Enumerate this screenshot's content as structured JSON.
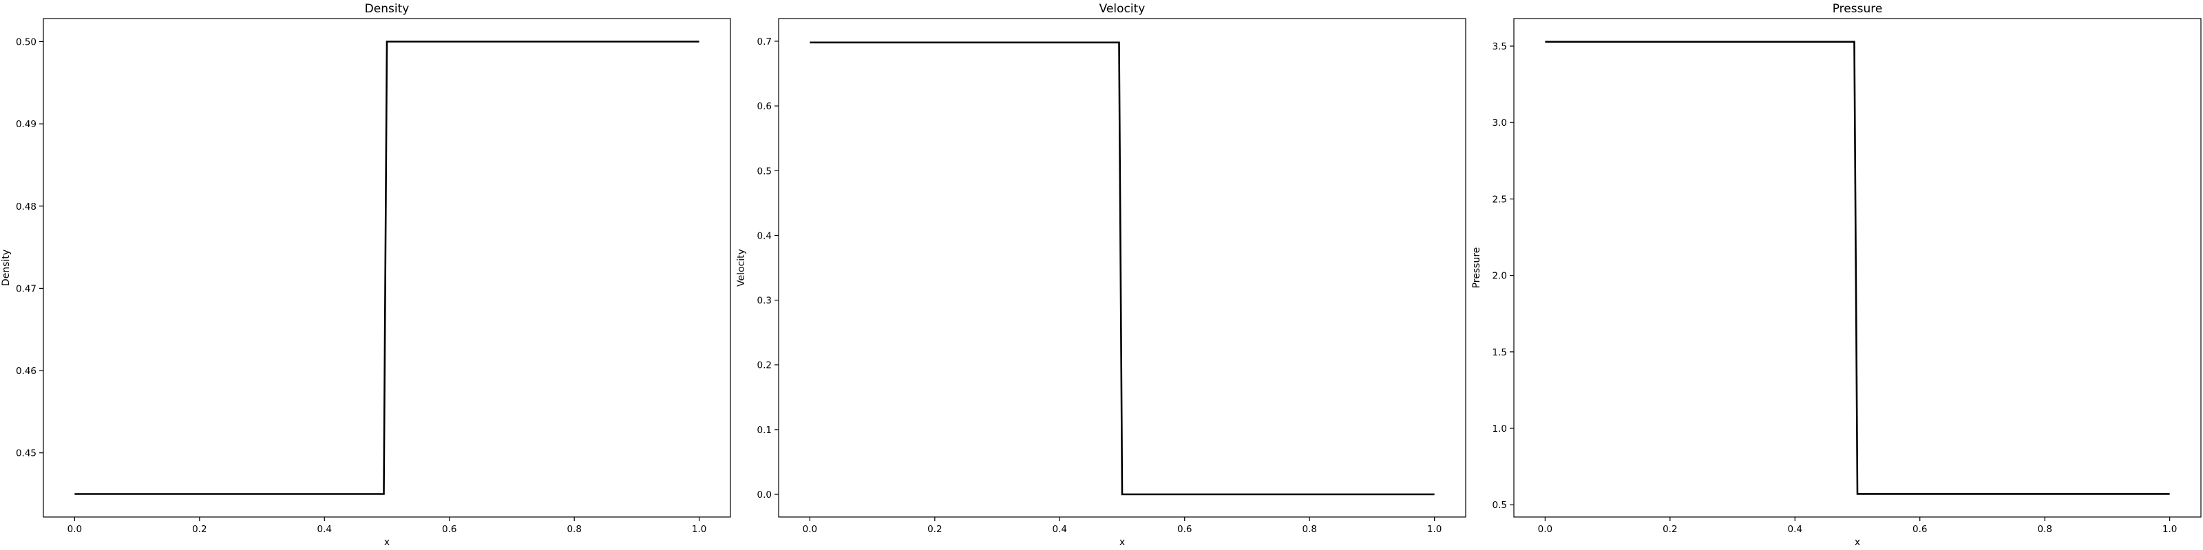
{
  "chart_data": [
    {
      "type": "line",
      "title": "Density",
      "xlabel": "x",
      "ylabel": "Density",
      "xlim": [
        -0.05,
        1.05
      ],
      "ylim": [
        0.4422,
        0.5028
      ],
      "xticks": [
        "0.0",
        "0.2",
        "0.4",
        "0.6",
        "0.8",
        "1.0"
      ],
      "yticks": [
        "0.45",
        "0.46",
        "0.47",
        "0.48",
        "0.49",
        "0.50"
      ],
      "grid": false,
      "series": [
        {
          "x": [
            0.0,
            0.495,
            0.5,
            1.0
          ],
          "y": [
            0.445,
            0.445,
            0.5,
            0.5
          ]
        }
      ]
    },
    {
      "type": "line",
      "title": "Velocity",
      "xlabel": "x",
      "ylabel": "Velocity",
      "xlim": [
        -0.05,
        1.05
      ],
      "ylim": [
        -0.035,
        0.735
      ],
      "xticks": [
        "0.0",
        "0.2",
        "0.4",
        "0.6",
        "0.8",
        "1.0"
      ],
      "yticks": [
        "0.0",
        "0.1",
        "0.2",
        "0.3",
        "0.4",
        "0.5",
        "0.6",
        "0.7"
      ],
      "grid": false,
      "series": [
        {
          "x": [
            0.0,
            0.495,
            0.5,
            1.0
          ],
          "y": [
            0.698,
            0.698,
            0.0,
            0.0
          ]
        }
      ]
    },
    {
      "type": "line",
      "title": "Pressure",
      "xlabel": "x",
      "ylabel": "Pressure",
      "xlim": [
        -0.05,
        1.05
      ],
      "ylim": [
        0.42,
        3.68
      ],
      "xticks": [
        "0.0",
        "0.2",
        "0.4",
        "0.6",
        "0.8",
        "1.0"
      ],
      "yticks": [
        "0.5",
        "1.0",
        "1.5",
        "2.0",
        "2.5",
        "3.0",
        "3.5"
      ],
      "grid": false,
      "series": [
        {
          "x": [
            0.0,
            0.495,
            0.5,
            1.0
          ],
          "y": [
            3.528,
            3.528,
            0.571,
            0.571
          ]
        }
      ]
    }
  ]
}
